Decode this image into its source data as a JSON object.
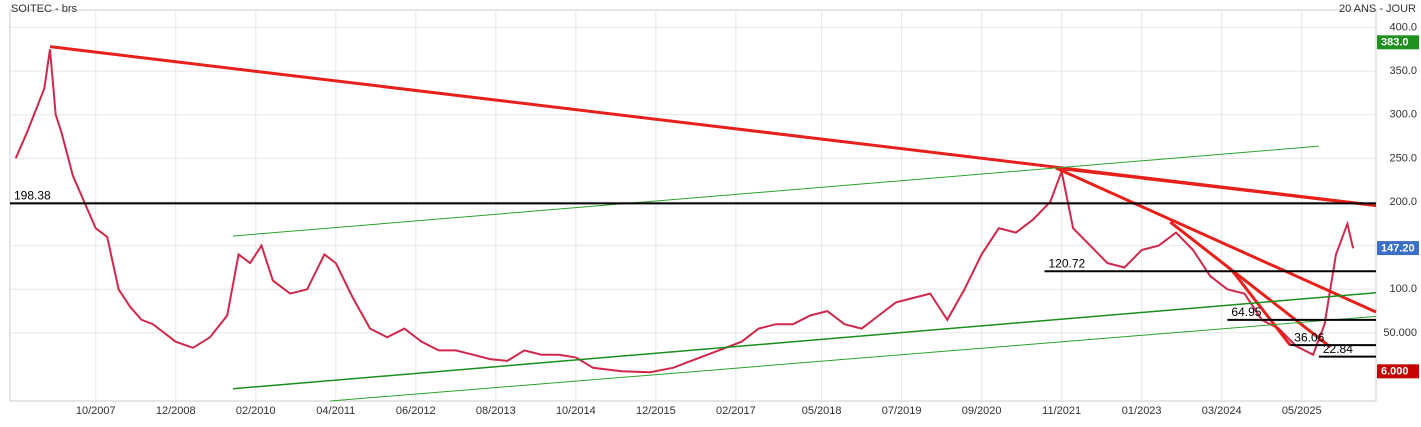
{
  "chart_data": {
    "type": "line",
    "title": "SOITEC - brs",
    "subtitle": "20 ANS - JOUR",
    "x": [
      "2006-08",
      "2006-10",
      "2007-01",
      "2007-02",
      "2007-03",
      "2007-04",
      "2007-06",
      "2007-08",
      "2007-10",
      "2007-12",
      "2008-02",
      "2008-04",
      "2008-06",
      "2008-08",
      "2008-10",
      "2008-12",
      "2009-03",
      "2009-06",
      "2009-09",
      "2009-11",
      "2010-01",
      "2010-03",
      "2010-05",
      "2010-08",
      "2010-11",
      "2011-02",
      "2011-04",
      "2011-07",
      "2011-10",
      "2012-01",
      "2012-04",
      "2012-07",
      "2012-10",
      "2013-01",
      "2013-04",
      "2013-07",
      "2013-10",
      "2014-01",
      "2014-04",
      "2014-07",
      "2014-10",
      "2015-01",
      "2015-06",
      "2015-11",
      "2016-03",
      "2016-07",
      "2016-11",
      "2017-03",
      "2017-06",
      "2017-09",
      "2017-12",
      "2018-03",
      "2018-06",
      "2018-09",
      "2018-12",
      "2019-03",
      "2019-06",
      "2019-09",
      "2019-12",
      "2020-03",
      "2020-06",
      "2020-09",
      "2020-12",
      "2021-03",
      "2021-06",
      "2021-09",
      "2021-11",
      "2022-01",
      "2022-04",
      "2022-07",
      "2022-10",
      "2023-01",
      "2023-04",
      "2023-07",
      "2023-10",
      "2024-01",
      "2024-04",
      "2024-07",
      "2024-10",
      "2025-01",
      "2025-04",
      "2025-07",
      "2025-09",
      "2025-11",
      "2026-01",
      "2026-02"
    ],
    "series": [
      {
        "name": "SOITEC",
        "color": "#d0284a",
        "values": [
          250,
          280,
          330,
          375,
          300,
          280,
          230,
          200,
          170,
          160,
          100,
          80,
          65,
          60,
          50,
          40,
          33,
          45,
          70,
          140,
          130,
          150,
          110,
          95,
          100,
          140,
          130,
          90,
          55,
          45,
          55,
          40,
          30,
          30,
          25,
          20,
          18,
          30,
          25,
          25,
          22,
          10,
          6,
          5,
          10,
          20,
          30,
          40,
          55,
          60,
          60,
          70,
          75,
          60,
          55,
          70,
          85,
          90,
          95,
          65,
          100,
          140,
          170,
          165,
          180,
          200,
          235,
          170,
          150,
          130,
          125,
          145,
          150,
          165,
          145,
          115,
          100,
          95,
          65,
          55,
          35,
          25,
          60,
          140,
          175,
          147
        ]
      }
    ],
    "xlim": [
      "2006-07",
      "2026-06"
    ],
    "xticks": [
      {
        "value": "2007-10",
        "label": "10/2007"
      },
      {
        "value": "2008-12",
        "label": "12/2008"
      },
      {
        "value": "2010-02",
        "label": "02/2010"
      },
      {
        "value": "2011-04",
        "label": "04/2011"
      },
      {
        "value": "2012-06",
        "label": "06/2012"
      },
      {
        "value": "2013-08",
        "label": "08/2013"
      },
      {
        "value": "2014-10",
        "label": "10/2014"
      },
      {
        "value": "2015-12",
        "label": "12/2015"
      },
      {
        "value": "2017-02",
        "label": "02/2017"
      },
      {
        "value": "2018-05",
        "label": "05/2018"
      },
      {
        "value": "2019-07",
        "label": "07/2019"
      },
      {
        "value": "2020-09",
        "label": "09/2020"
      },
      {
        "value": "2021-11",
        "label": "11/2021"
      },
      {
        "value": "2023-01",
        "label": "01/2023"
      },
      {
        "value": "2024-03",
        "label": "03/2024"
      },
      {
        "value": "2025-05",
        "label": "05/2025"
      }
    ],
    "ylim": [
      -28,
      420
    ],
    "yticks": [
      {
        "value": 50,
        "label": "50.000"
      },
      {
        "value": 100,
        "label": "100.0"
      },
      {
        "value": 150,
        "label": "150.0"
      },
      {
        "value": 200,
        "label": "200.0"
      },
      {
        "value": 250,
        "label": "250.0"
      },
      {
        "value": 300,
        "label": "300.0"
      },
      {
        "value": 350,
        "label": "350.0"
      },
      {
        "value": 400,
        "label": "400.0"
      }
    ],
    "grid": true,
    "levels": [
      {
        "value": 198.38,
        "start": "2006-07"
      },
      {
        "value": 120.72,
        "start": "2021-08"
      },
      {
        "value": 64.95,
        "start": "2024-04"
      },
      {
        "value": 36.06,
        "start": "2025-03"
      },
      {
        "value": 22.84,
        "start": "2025-08"
      }
    ],
    "trendlines": [
      {
        "x": [
          "2007-02",
          "2026-06"
        ],
        "y": [
          378,
          196
        ],
        "color": "#e8201c",
        "style": "thick"
      },
      {
        "x": [
          "2021-10",
          "2026-06"
        ],
        "y": [
          239,
          196
        ],
        "color": "#e8201c",
        "style": "thick"
      },
      {
        "x": [
          "2021-10",
          "2026-06"
        ],
        "y": [
          239,
          74
        ],
        "color": "#e8201c",
        "style": "thick"
      },
      {
        "x": [
          "2023-06",
          "2025-10"
        ],
        "y": [
          177,
          34
        ],
        "color": "#e8201c",
        "style": "thick"
      },
      {
        "x": [
          "2024-05",
          "2025-03"
        ],
        "y": [
          120,
          36
        ],
        "color": "#e8201c",
        "style": "thick"
      },
      {
        "x": [
          "2009-10",
          "2025-08"
        ],
        "y": [
          161,
          264
        ],
        "color": "#2aa52a",
        "style": "thin"
      },
      {
        "x": [
          "2009-10",
          "2026-06"
        ],
        "y": [
          -14,
          96
        ],
        "color": "#1a8f1a",
        "style": "medium"
      },
      {
        "x": [
          "2011-03",
          "2026-06"
        ],
        "y": [
          -28,
          69
        ],
        "color": "#2aa52a",
        "style": "thin"
      }
    ],
    "price_tags": [
      {
        "value": 383,
        "label": "383.0",
        "color": "#1f8f1f"
      },
      {
        "value": 147.2,
        "label": "147.20",
        "color": "#3b70c6"
      },
      {
        "value": 6,
        "label": "6.000",
        "color": "#c40000"
      }
    ]
  }
}
